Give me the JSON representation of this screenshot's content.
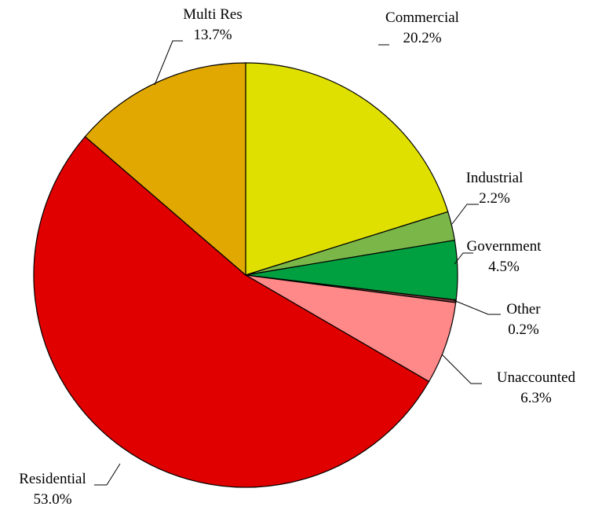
{
  "chart_data": {
    "type": "pie",
    "title": "",
    "slices": [
      {
        "name": "Commercial",
        "value": 20.2,
        "label": "20.2%",
        "color": "#e0e000"
      },
      {
        "name": "Industrial",
        "value": 2.2,
        "label": "2.2%",
        "color": "#7ab648"
      },
      {
        "name": "Government",
        "value": 4.5,
        "label": "4.5%",
        "color": "#00a040"
      },
      {
        "name": "Other",
        "value": 0.2,
        "label": "0.2%",
        "color": "#7a3a3a"
      },
      {
        "name": "Unaccounted",
        "value": 6.3,
        "label": "6.3%",
        "color": "#ff8888"
      },
      {
        "name": "Residential",
        "value": 53.0,
        "label": "53.0%",
        "color": "#e00000"
      },
      {
        "name": "Multi Res",
        "value": 13.7,
        "label": "13.7%",
        "color": "#e0a800"
      }
    ],
    "start_angle": "12 o'clock",
    "direction": "clockwise",
    "legend": "none"
  }
}
